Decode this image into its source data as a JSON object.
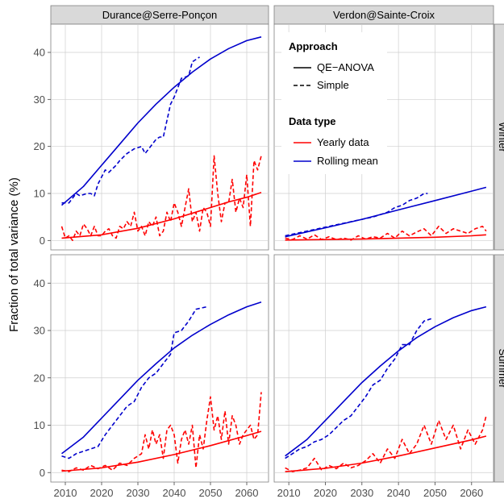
{
  "figure": {
    "ylabel": "Fraction of total variance (%)"
  },
  "colors": {
    "red": "#ff0000",
    "blue": "#0000cc",
    "grid": "#cfcfcf",
    "strip": "#d9d9d9"
  },
  "chart_data": {
    "type": "line",
    "facet_columns": [
      "Durance@Serre-Ponçon",
      "Verdon@Sainte-Croix"
    ],
    "facet_rows": [
      "Winter",
      "Summer"
    ],
    "xlim": [
      2006,
      2066
    ],
    "ylim": [
      -2,
      46
    ],
    "x_ticks": [
      2010,
      2020,
      2030,
      2040,
      2050,
      2060
    ],
    "y_ticks": [
      0,
      10,
      20,
      30,
      40
    ],
    "legend": {
      "position": "inside top-left of top-right panel",
      "approach_title": "Approach",
      "approach_items": [
        {
          "label": "QE−ANOVA",
          "dash": "solid"
        },
        {
          "label": "Simple",
          "dash": "dashed"
        }
      ],
      "datatype_title": "Data type",
      "datatype_items": [
        {
          "label": "Yearly data",
          "color": "#ff0000"
        },
        {
          "label": "Rolling mean",
          "color": "#0000cc"
        }
      ]
    },
    "panels": [
      {
        "column": "Durance@Serre-Ponçon",
        "row": "Winter",
        "series": [
          {
            "approach": "QE-ANOVA",
            "datatype": "Rolling mean",
            "x": [
              2009,
              2015,
              2020,
              2025,
              2030,
              2035,
              2040,
              2045,
              2050,
              2055,
              2060,
              2064
            ],
            "y": [
              7.5,
              11.5,
              16,
              20.5,
              25,
              29,
              32.6,
              35.8,
              38.6,
              40.8,
              42.5,
              43.3
            ]
          },
          {
            "approach": "Simple",
            "datatype": "Rolling mean",
            "x": [
              2009,
              2011,
              2013,
              2014,
              2016,
              2017,
              2018,
              2019,
              2021,
              2022,
              2024,
              2025,
              2027,
              2029,
              2031,
              2032,
              2033,
              2035,
              2036,
              2037,
              2039,
              2040,
              2042,
              2044,
              2045,
              2047
            ],
            "y": [
              8,
              8,
              10,
              9.5,
              10,
              10,
              9.5,
              12,
              15,
              14.5,
              16,
              17,
              18.5,
              19.5,
              20,
              18.5,
              19.5,
              21.5,
              22,
              22,
              29,
              30.5,
              34.5,
              35,
              38,
              39
            ]
          },
          {
            "approach": "QE-ANOVA",
            "datatype": "Yearly data",
            "x": [
              2009,
              2020,
              2030,
              2040,
              2050,
              2055,
              2060,
              2064
            ],
            "y": [
              0.5,
              1.2,
              2.6,
              4.6,
              7,
              8.2,
              9.2,
              10.2
            ]
          },
          {
            "approach": "Simple",
            "datatype": "Yearly data",
            "x": [
              2009,
              2010,
              2011,
              2012,
              2013,
              2014,
              2015,
              2016,
              2017,
              2018,
              2019,
              2020,
              2021,
              2022,
              2023,
              2024,
              2025,
              2026,
              2027,
              2028,
              2029,
              2030,
              2031,
              2032,
              2033,
              2034,
              2035,
              2036,
              2037,
              2038,
              2039,
              2040,
              2041,
              2042,
              2043,
              2044,
              2045,
              2046,
              2047,
              2048,
              2049,
              2050,
              2051,
              2052,
              2053,
              2054,
              2055,
              2056,
              2057,
              2058,
              2059,
              2060,
              2061,
              2062,
              2063,
              2064
            ],
            "y": [
              3,
              0.5,
              1,
              0,
              2,
              1,
              3.5,
              2.5,
              1,
              3,
              1,
              1,
              2,
              2.5,
              1,
              0.5,
              3,
              2.5,
              4,
              3,
              6,
              2,
              3,
              1,
              4,
              3,
              5,
              1,
              2,
              6,
              4,
              8,
              6,
              3,
              7,
              11,
              4,
              6,
              2,
              7,
              6,
              3,
              18,
              10,
              4,
              8,
              8,
              13,
              6,
              9,
              7,
              14,
              3,
              17,
              15,
              18
            ]
          }
        ]
      },
      {
        "column": "Verdon@Sainte-Croix",
        "row": "Winter",
        "series": [
          {
            "approach": "QE-ANOVA",
            "datatype": "Rolling mean",
            "x": [
              2009,
              2020,
              2030,
              2040,
              2050,
              2060,
              2064
            ],
            "y": [
              0.8,
              2.7,
              4.5,
              6.5,
              8.5,
              10.5,
              11.3
            ]
          },
          {
            "approach": "Simple",
            "datatype": "Rolling mean",
            "x": [
              2009,
              2012,
              2015,
              2018,
              2021,
              2024,
              2027,
              2030,
              2033,
              2035,
              2037,
              2039,
              2041,
              2043,
              2045,
              2047,
              2048
            ],
            "y": [
              1,
              1.5,
              2,
              2.5,
              3,
              3.5,
              4,
              4.5,
              5,
              5.5,
              6,
              7,
              7.5,
              8.5,
              9,
              10,
              10
            ]
          },
          {
            "approach": "QE-ANOVA",
            "datatype": "Yearly data",
            "x": [
              2009,
              2020,
              2030,
              2040,
              2050,
              2060,
              2064
            ],
            "y": [
              0.1,
              0.2,
              0.3,
              0.5,
              0.7,
              1,
              1.2
            ]
          },
          {
            "approach": "Simple",
            "datatype": "Yearly data",
            "x": [
              2009,
              2011,
              2013,
              2015,
              2017,
              2019,
              2021,
              2023,
              2025,
              2027,
              2029,
              2031,
              2033,
              2035,
              2037,
              2039,
              2041,
              2043,
              2045,
              2047,
              2049,
              2051,
              2053,
              2055,
              2057,
              2059,
              2061,
              2063,
              2064
            ],
            "y": [
              0.5,
              0.2,
              1,
              0.3,
              1.2,
              0.2,
              0.8,
              0.2,
              0.5,
              0.1,
              1,
              0.3,
              0.8,
              0.5,
              1.5,
              0.5,
              2,
              1,
              1.8,
              2.5,
              1,
              3,
              1.5,
              2.5,
              2,
              1.5,
              2.5,
              3,
              2
            ]
          }
        ]
      },
      {
        "column": "Durance@Serre-Ponçon",
        "row": "Summer",
        "series": [
          {
            "approach": "QE-ANOVA",
            "datatype": "Rolling mean",
            "x": [
              2009,
              2015,
              2020,
              2025,
              2030,
              2035,
              2040,
              2045,
              2050,
              2055,
              2060,
              2064
            ],
            "y": [
              4,
              7.5,
              11.5,
              15.5,
              19.5,
              23,
              26.3,
              29,
              31.3,
              33.3,
              35,
              36
            ]
          },
          {
            "approach": "Simple",
            "datatype": "Rolling mean",
            "x": [
              2009,
              2011,
              2013,
              2015,
              2017,
              2019,
              2021,
              2023,
              2025,
              2027,
              2029,
              2031,
              2033,
              2035,
              2037,
              2039,
              2040,
              2042,
              2044,
              2046,
              2049
            ],
            "y": [
              3.5,
              3,
              4,
              4.5,
              5,
              5.5,
              8,
              10,
              12,
              14,
              15,
              18,
              20,
              21,
              23,
              25,
              29.5,
              30,
              32,
              34.5,
              35
            ]
          },
          {
            "approach": "QE-ANOVA",
            "datatype": "Yearly data",
            "x": [
              2009,
              2020,
              2030,
              2040,
              2050,
              2060,
              2064
            ],
            "y": [
              0.3,
              1,
              2.2,
              3.8,
              5.7,
              7.8,
              8.7
            ]
          },
          {
            "approach": "Simple",
            "datatype": "Yearly data",
            "x": [
              2009,
              2011,
              2013,
              2015,
              2017,
              2019,
              2021,
              2023,
              2025,
              2027,
              2029,
              2031,
              2032,
              2033,
              2034,
              2035,
              2036,
              2037,
              2038,
              2039,
              2040,
              2041,
              2042,
              2043,
              2044,
              2045,
              2046,
              2047,
              2048,
              2049,
              2050,
              2051,
              2052,
              2053,
              2054,
              2055,
              2056,
              2057,
              2058,
              2059,
              2060,
              2061,
              2062,
              2063,
              2064
            ],
            "y": [
              0.5,
              0.2,
              1,
              0.5,
              1.5,
              0.8,
              1.5,
              0.5,
              2,
              1.5,
              3,
              4,
              8,
              5,
              9,
              6,
              8,
              3,
              9,
              10,
              8,
              2,
              7,
              9,
              6,
              10,
              1,
              8,
              5,
              11,
              16,
              9,
              12,
              7,
              13,
              6,
              12,
              10,
              6,
              8,
              9,
              10,
              7,
              8,
              17
            ]
          }
        ]
      },
      {
        "column": "Verdon@Sainte-Croix",
        "row": "Summer",
        "series": [
          {
            "approach": "QE-ANOVA",
            "datatype": "Rolling mean",
            "x": [
              2009,
              2015,
              2020,
              2025,
              2030,
              2035,
              2040,
              2045,
              2050,
              2055,
              2060,
              2064
            ],
            "y": [
              3.5,
              7,
              11,
              15,
              19,
              22.5,
              25.7,
              28.5,
              30.8,
              32.7,
              34.2,
              35
            ]
          },
          {
            "approach": "Simple",
            "datatype": "Rolling mean",
            "x": [
              2009,
              2011,
              2013,
              2015,
              2017,
              2019,
              2021,
              2023,
              2025,
              2027,
              2029,
              2031,
              2033,
              2035,
              2037,
              2039,
              2041,
              2043,
              2045,
              2047,
              2049
            ],
            "y": [
              3,
              4,
              5,
              5.5,
              6.5,
              7,
              8,
              9.5,
              11,
              12,
              14,
              16,
              18.5,
              19.5,
              22,
              24,
              27,
              27,
              30,
              32,
              32.5
            ]
          },
          {
            "approach": "QE-ANOVA",
            "datatype": "Yearly data",
            "x": [
              2009,
              2020,
              2030,
              2040,
              2050,
              2060,
              2064
            ],
            "y": [
              0.2,
              0.9,
              2,
              3.5,
              5.2,
              6.9,
              7.7
            ]
          },
          {
            "approach": "Simple",
            "datatype": "Yearly data",
            "x": [
              2009,
              2011,
              2013,
              2015,
              2017,
              2019,
              2021,
              2023,
              2025,
              2027,
              2029,
              2031,
              2033,
              2035,
              2037,
              2039,
              2041,
              2043,
              2045,
              2047,
              2049,
              2051,
              2053,
              2055,
              2057,
              2059,
              2061,
              2063,
              2064
            ],
            "y": [
              1,
              0.2,
              0.5,
              1,
              3,
              0.5,
              1.5,
              0.8,
              2,
              1,
              1.5,
              2.5,
              4,
              2,
              5,
              3,
              7,
              4,
              6,
              10,
              6,
              11,
              7,
              10,
              5,
              9,
              6,
              9,
              12
            ]
          }
        ]
      }
    ]
  }
}
